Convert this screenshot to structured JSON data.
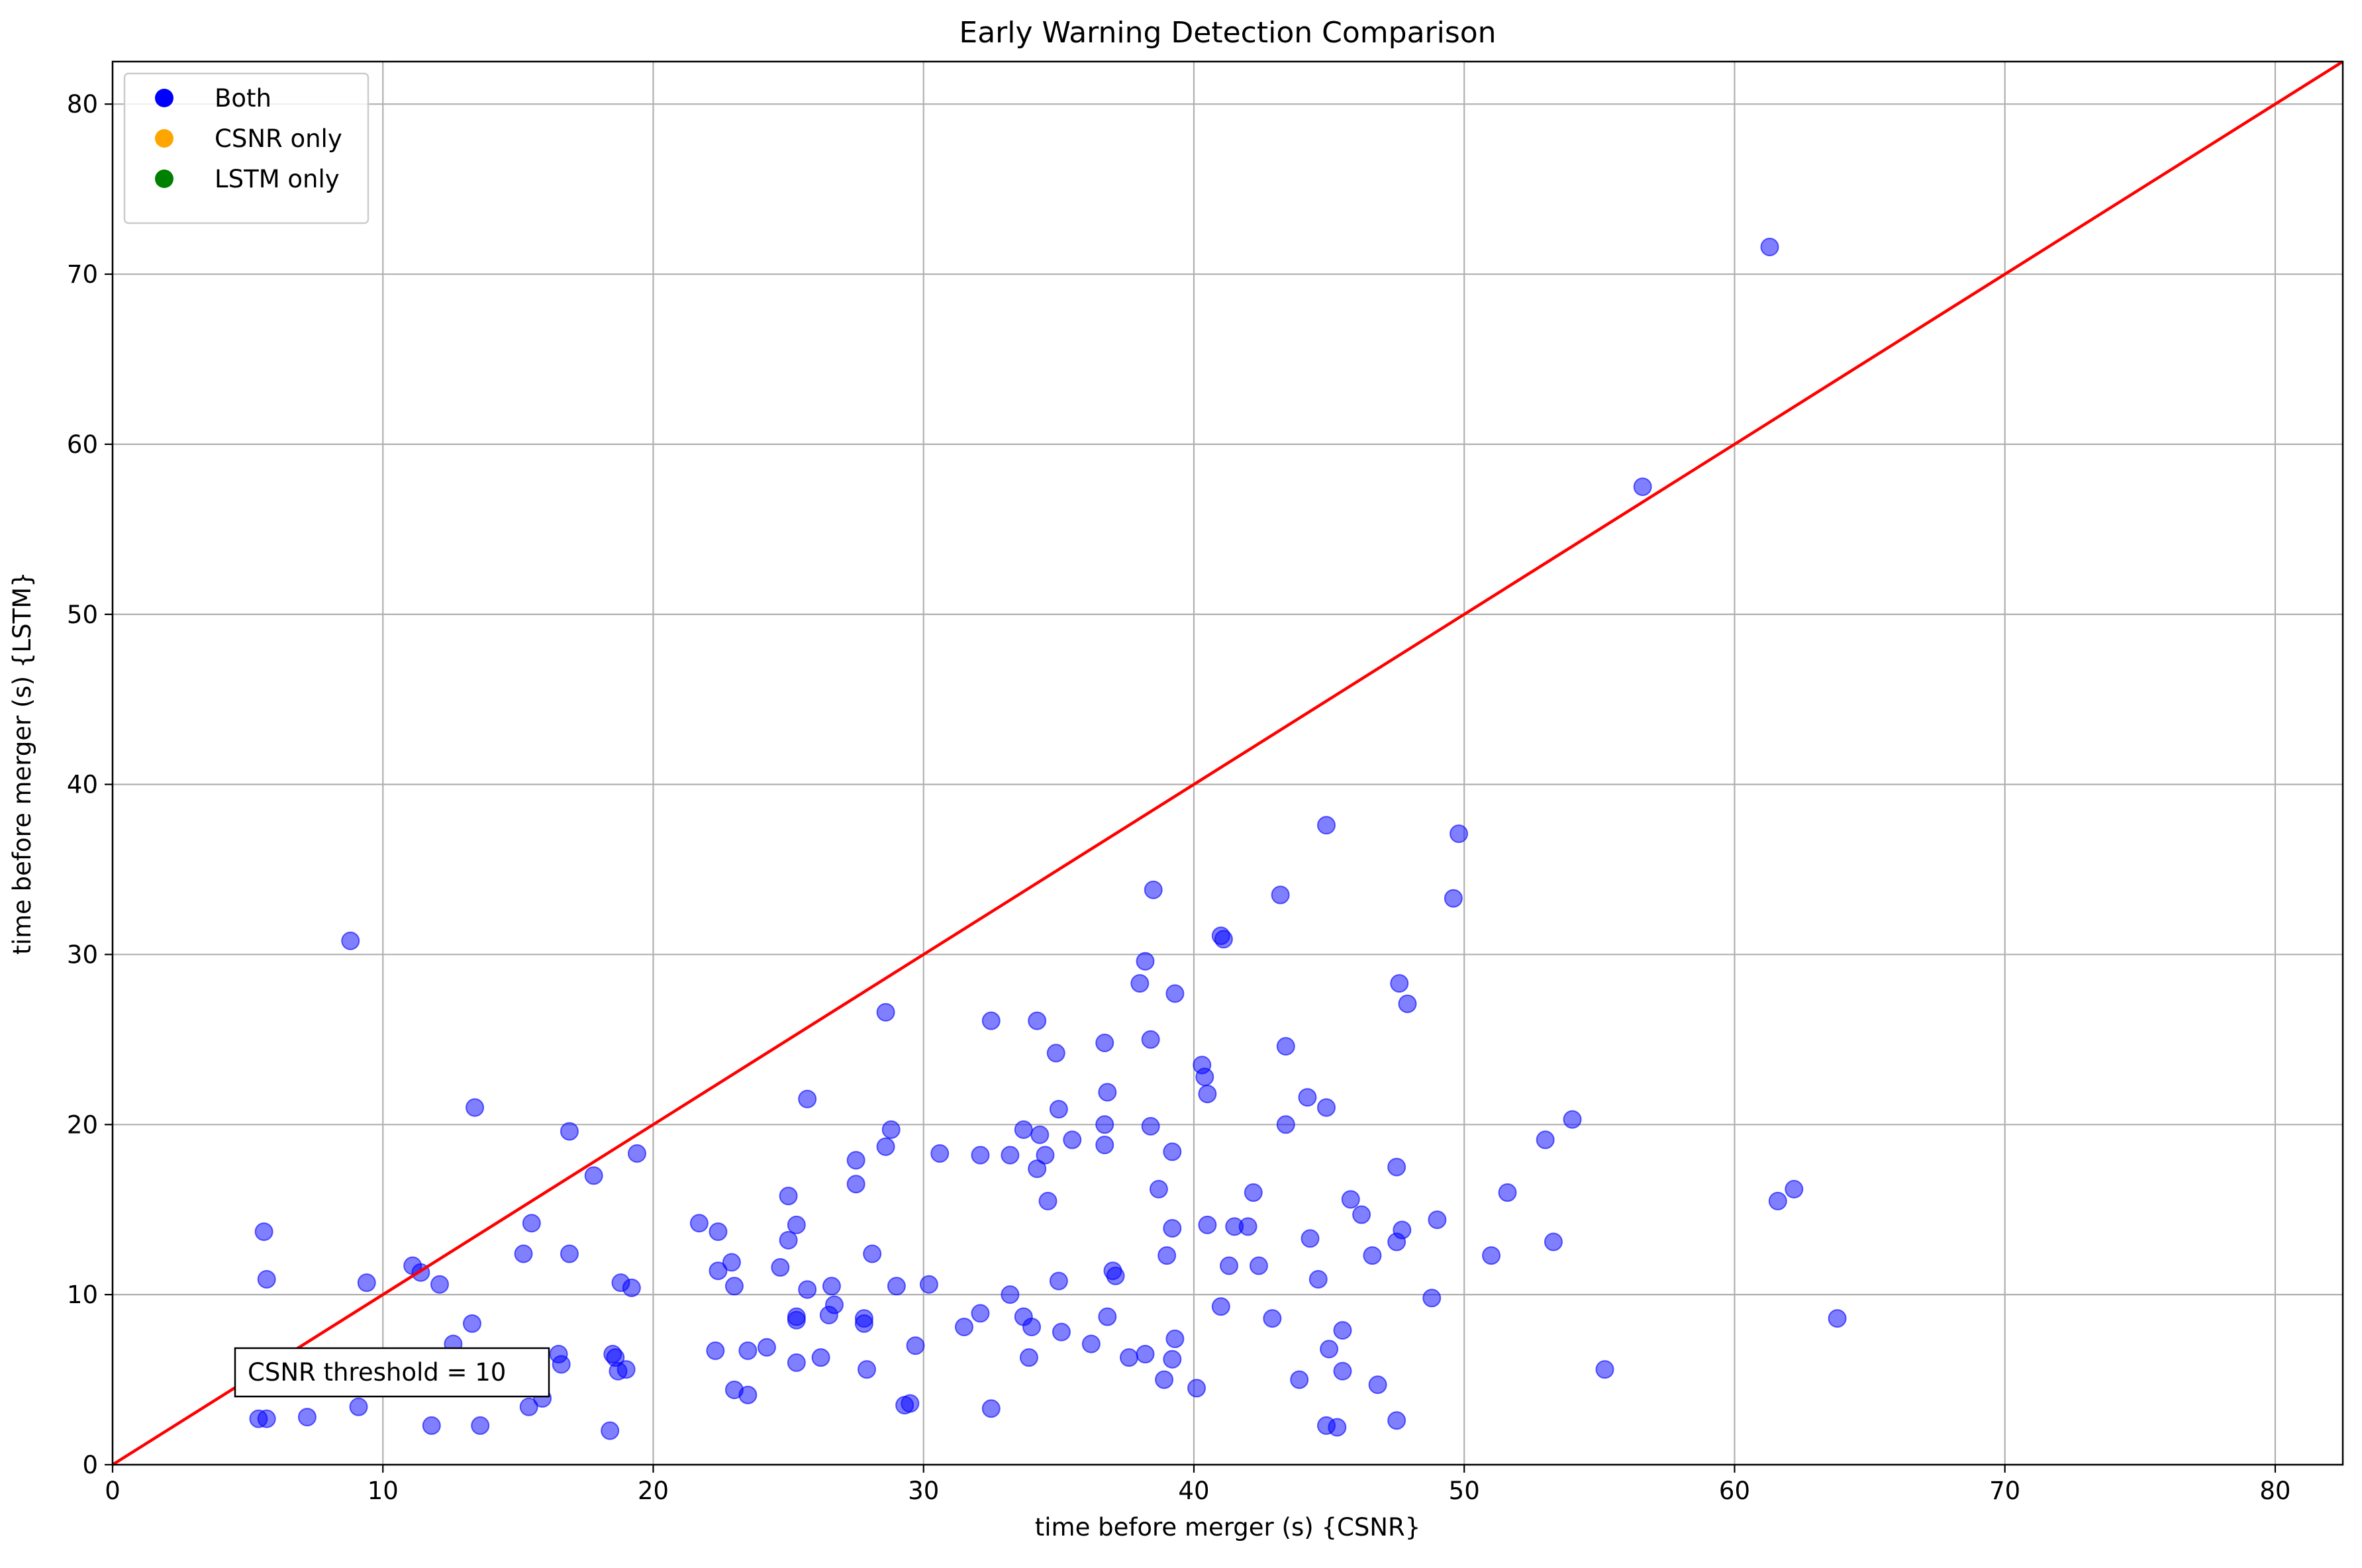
{
  "chart_data": {
    "type": "scatter",
    "title": "Early Warning Detection Comparison",
    "xlabel": "time before merger (s) {CSNR}",
    "ylabel": "time before merger (s) {LSTM}",
    "xlim": [
      0,
      82.5
    ],
    "ylim": [
      0,
      82.5
    ],
    "x_ticks": [
      "0",
      "10",
      "20",
      "30",
      "40",
      "50",
      "60",
      "70",
      "80"
    ],
    "y_ticks": [
      "0",
      "10",
      "20",
      "30",
      "40",
      "50",
      "60",
      "70",
      "80"
    ],
    "grid": true,
    "legend_position": "upper-left",
    "legend": [
      {
        "label": "Both",
        "color": "#0000ff"
      },
      {
        "label": "CSNR only",
        "color": "#ffa500"
      },
      {
        "label": "LSTM only",
        "color": "#008000"
      }
    ],
    "reference_line": {
      "type": "y=x",
      "color": "#ff0000"
    },
    "annotation": "CSNR threshold = 10",
    "series": [
      {
        "name": "Both",
        "color": "#0000ff",
        "alpha": 0.5,
        "points": [
          [
            61.3,
            71.6
          ],
          [
            56.6,
            57.5
          ],
          [
            44.9,
            37.6
          ],
          [
            49.8,
            37.1
          ],
          [
            38.5,
            33.8
          ],
          [
            43.2,
            33.5
          ],
          [
            49.6,
            33.3
          ],
          [
            41.0,
            31.1
          ],
          [
            41.1,
            30.9
          ],
          [
            8.8,
            30.8
          ],
          [
            38.2,
            29.6
          ],
          [
            47.6,
            28.3
          ],
          [
            38.0,
            28.3
          ],
          [
            39.3,
            27.7
          ],
          [
            47.9,
            27.1
          ],
          [
            28.6,
            26.6
          ],
          [
            32.5,
            26.1
          ],
          [
            34.2,
            26.1
          ],
          [
            38.4,
            25.0
          ],
          [
            36.7,
            24.8
          ],
          [
            43.4,
            24.6
          ],
          [
            34.9,
            24.2
          ],
          [
            40.3,
            23.5
          ],
          [
            40.4,
            22.8
          ],
          [
            36.8,
            21.9
          ],
          [
            40.5,
            21.8
          ],
          [
            44.2,
            21.6
          ],
          [
            25.7,
            21.5
          ],
          [
            13.4,
            21.0
          ],
          [
            44.9,
            21.0
          ],
          [
            35.0,
            20.9
          ],
          [
            54.0,
            20.3
          ],
          [
            36.7,
            20.0
          ],
          [
            43.4,
            20.0
          ],
          [
            38.4,
            19.9
          ],
          [
            33.7,
            19.7
          ],
          [
            28.8,
            19.7
          ],
          [
            16.9,
            19.6
          ],
          [
            34.3,
            19.4
          ],
          [
            53.0,
            19.1
          ],
          [
            35.5,
            19.1
          ],
          [
            36.7,
            18.8
          ],
          [
            28.6,
            18.7
          ],
          [
            39.2,
            18.4
          ],
          [
            19.4,
            18.3
          ],
          [
            30.6,
            18.3
          ],
          [
            32.1,
            18.2
          ],
          [
            33.2,
            18.2
          ],
          [
            34.5,
            18.2
          ],
          [
            27.5,
            17.9
          ],
          [
            34.2,
            17.4
          ],
          [
            47.5,
            17.5
          ],
          [
            17.8,
            17.0
          ],
          [
            27.5,
            16.5
          ],
          [
            62.2,
            16.2
          ],
          [
            38.7,
            16.2
          ],
          [
            51.6,
            16.0
          ],
          [
            42.2,
            16.0
          ],
          [
            25.0,
            15.8
          ],
          [
            45.8,
            15.6
          ],
          [
            61.6,
            15.5
          ],
          [
            34.6,
            15.5
          ],
          [
            46.2,
            14.7
          ],
          [
            49.0,
            14.4
          ],
          [
            21.7,
            14.2
          ],
          [
            15.5,
            14.2
          ],
          [
            25.3,
            14.1
          ],
          [
            40.5,
            14.1
          ],
          [
            41.5,
            14.0
          ],
          [
            42.0,
            14.0
          ],
          [
            39.2,
            13.9
          ],
          [
            47.7,
            13.8
          ],
          [
            5.6,
            13.7
          ],
          [
            22.4,
            13.7
          ],
          [
            44.3,
            13.3
          ],
          [
            53.3,
            13.1
          ],
          [
            47.5,
            13.1
          ],
          [
            25.0,
            13.2
          ],
          [
            15.2,
            12.4
          ],
          [
            16.9,
            12.4
          ],
          [
            28.1,
            12.4
          ],
          [
            39.0,
            12.3
          ],
          [
            46.6,
            12.3
          ],
          [
            51.0,
            12.3
          ],
          [
            22.9,
            11.9
          ],
          [
            11.1,
            11.7
          ],
          [
            24.7,
            11.6
          ],
          [
            41.3,
            11.7
          ],
          [
            42.4,
            11.7
          ],
          [
            22.4,
            11.4
          ],
          [
            11.4,
            11.3
          ],
          [
            37.0,
            11.4
          ],
          [
            37.1,
            11.1
          ],
          [
            5.7,
            10.9
          ],
          [
            44.6,
            10.9
          ],
          [
            9.4,
            10.7
          ],
          [
            18.8,
            10.7
          ],
          [
            12.1,
            10.6
          ],
          [
            35.0,
            10.8
          ],
          [
            30.2,
            10.6
          ],
          [
            29.0,
            10.5
          ],
          [
            23.0,
            10.5
          ],
          [
            26.6,
            10.5
          ],
          [
            19.2,
            10.4
          ],
          [
            25.7,
            10.3
          ],
          [
            33.2,
            10.0
          ],
          [
            48.8,
            9.8
          ],
          [
            26.7,
            9.4
          ],
          [
            41.0,
            9.3
          ],
          [
            26.5,
            8.8
          ],
          [
            32.1,
            8.9
          ],
          [
            33.7,
            8.7
          ],
          [
            36.8,
            8.7
          ],
          [
            63.8,
            8.6
          ],
          [
            42.9,
            8.6
          ],
          [
            27.8,
            8.6
          ],
          [
            25.3,
            8.7
          ],
          [
            27.8,
            8.3
          ],
          [
            25.3,
            8.5
          ],
          [
            13.3,
            8.3
          ],
          [
            34.0,
            8.1
          ],
          [
            31.5,
            8.1
          ],
          [
            45.5,
            7.9
          ],
          [
            35.1,
            7.8
          ],
          [
            39.3,
            7.4
          ],
          [
            36.2,
            7.1
          ],
          [
            12.6,
            7.1
          ],
          [
            29.7,
            7.0
          ],
          [
            24.2,
            6.9
          ],
          [
            45.0,
            6.8
          ],
          [
            23.5,
            6.7
          ],
          [
            22.3,
            6.7
          ],
          [
            38.2,
            6.5
          ],
          [
            18.5,
            6.5
          ],
          [
            16.5,
            6.5
          ],
          [
            18.6,
            6.3
          ],
          [
            26.2,
            6.3
          ],
          [
            33.9,
            6.3
          ],
          [
            37.6,
            6.3
          ],
          [
            39.2,
            6.2
          ],
          [
            25.3,
            6.0
          ],
          [
            16.6,
            5.9
          ],
          [
            27.9,
            5.6
          ],
          [
            19.0,
            5.6
          ],
          [
            18.7,
            5.5
          ],
          [
            45.5,
            5.5
          ],
          [
            55.2,
            5.6
          ],
          [
            43.9,
            5.0
          ],
          [
            38.9,
            5.0
          ],
          [
            46.8,
            4.7
          ],
          [
            40.1,
            4.5
          ],
          [
            23.0,
            4.4
          ],
          [
            23.5,
            4.1
          ],
          [
            15.9,
            3.9
          ],
          [
            15.4,
            3.4
          ],
          [
            9.1,
            3.4
          ],
          [
            29.3,
            3.5
          ],
          [
            29.5,
            3.6
          ],
          [
            32.5,
            3.3
          ],
          [
            5.4,
            2.7
          ],
          [
            5.7,
            2.7
          ],
          [
            7.2,
            2.8
          ],
          [
            11.8,
            2.3
          ],
          [
            13.6,
            2.3
          ],
          [
            44.9,
            2.3
          ],
          [
            45.3,
            2.2
          ],
          [
            47.5,
            2.6
          ],
          [
            18.4,
            2.0
          ]
        ]
      }
    ]
  }
}
